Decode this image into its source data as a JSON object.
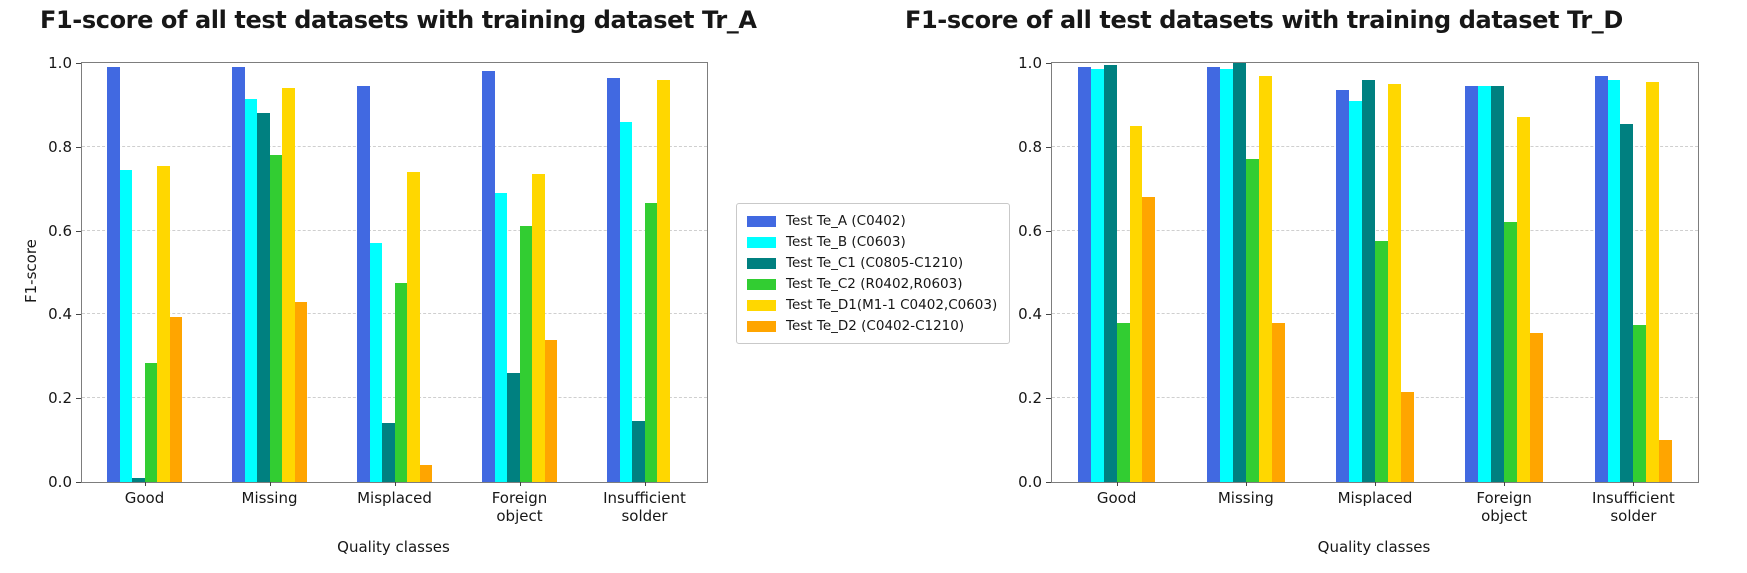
{
  "figure": {
    "background": "#ffffff",
    "spine_color": "#7d7d7d",
    "gridline_color": "#cfcfcf"
  },
  "legend": {
    "position": "center between charts",
    "entries": [
      {
        "label": "Test Te_A (C0402)",
        "color": "#4169e1"
      },
      {
        "label": "Test Te_B (C0603)",
        "color": "#00ffff"
      },
      {
        "label": "Test Te_C1 (C0805-C1210)",
        "color": "#008080"
      },
      {
        "label": "Test Te_C2 (R0402,R0603)",
        "color": "#32cd32"
      },
      {
        "label": "Test Te_D1(M1-1 C0402,C0603)",
        "color": "#ffd700"
      },
      {
        "label": "Test Te_D2 (C0402-C1210)",
        "color": "#ffa500"
      }
    ]
  },
  "chart_data": [
    {
      "type": "bar",
      "title": "F1-score of all test datasets with training dataset Tr_A",
      "xlabel": "Quality classes",
      "ylabel": "F1-score",
      "ylim": [
        0.0,
        1.0
      ],
      "yticks": [
        "0.0",
        "0.2",
        "0.4",
        "0.6",
        "0.8",
        "1.0"
      ],
      "grid": "horizontal dashed at 0.2 intervals",
      "categories": [
        "Good",
        "Missing",
        "Misplaced",
        "Foreign\nobject",
        "Insufficient\nsolder"
      ],
      "series": [
        {
          "name": "Test Te_A (C0402)",
          "color": "#4169e1",
          "values": [
            0.99,
            0.99,
            0.945,
            0.98,
            0.965
          ]
        },
        {
          "name": "Test Te_B (C0603)",
          "color": "#00ffff",
          "values": [
            0.745,
            0.915,
            0.57,
            0.69,
            0.86
          ]
        },
        {
          "name": "Test Te_C1 (C0805-C1210)",
          "color": "#008080",
          "values": [
            0.01,
            0.88,
            0.14,
            0.26,
            0.145
          ]
        },
        {
          "name": "Test Te_C2 (R0402,R0603)",
          "color": "#32cd32",
          "values": [
            0.285,
            0.78,
            0.475,
            0.61,
            0.665
          ]
        },
        {
          "name": "Test Te_D1(M1-1 C0402,C0603)",
          "color": "#ffd700",
          "values": [
            0.755,
            0.94,
            0.74,
            0.735,
            0.96
          ]
        },
        {
          "name": "Test Te_D2 (C0402-C1210)",
          "color": "#ffa500",
          "values": [
            0.395,
            0.43,
            0.04,
            0.34,
            0.0
          ]
        }
      ]
    },
    {
      "type": "bar",
      "title": "F1-score of all test datasets with training dataset Tr_D",
      "xlabel": "Quality classes",
      "ylabel": "",
      "ylim": [
        0.0,
        1.0
      ],
      "yticks": [
        "0.0",
        "0.2",
        "0.4",
        "0.6",
        "0.8",
        "1.0"
      ],
      "grid": "horizontal dashed at 0.2 intervals",
      "categories": [
        "Good",
        "Missing",
        "Misplaced",
        "Foreign\nobject",
        "Insufficient\nsolder"
      ],
      "series": [
        {
          "name": "Test Te_A (C0402)",
          "color": "#4169e1",
          "values": [
            0.99,
            0.99,
            0.935,
            0.945,
            0.97
          ]
        },
        {
          "name": "Test Te_B (C0603)",
          "color": "#00ffff",
          "values": [
            0.985,
            0.985,
            0.91,
            0.945,
            0.96
          ]
        },
        {
          "name": "Test Te_C1 (C0805-C1210)",
          "color": "#008080",
          "values": [
            0.995,
            1.0,
            0.96,
            0.945,
            0.855
          ]
        },
        {
          "name": "Test Te_C2 (R0402,R0603)",
          "color": "#32cd32",
          "values": [
            0.38,
            0.77,
            0.575,
            0.62,
            0.375
          ]
        },
        {
          "name": "Test Te_D1(M1-1 C0402,C0603)",
          "color": "#ffd700",
          "values": [
            0.85,
            0.97,
            0.95,
            0.87,
            0.955
          ]
        },
        {
          "name": "Test Te_D2 (C0402-C1210)",
          "color": "#ffa500",
          "values": [
            0.68,
            0.38,
            0.215,
            0.355,
            0.1
          ]
        }
      ]
    }
  ]
}
